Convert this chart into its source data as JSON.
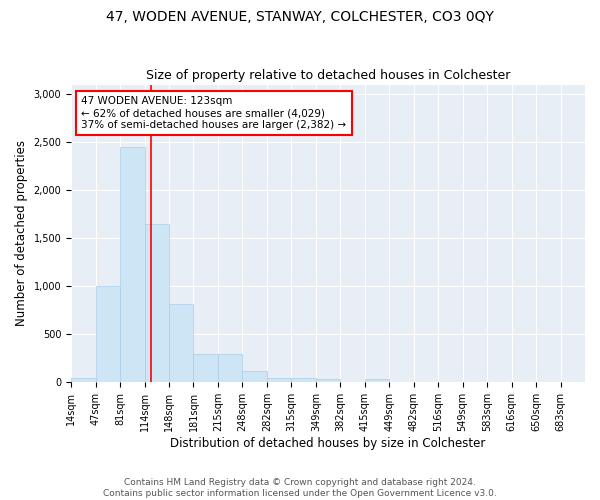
{
  "title": "47, WODEN AVENUE, STANWAY, COLCHESTER, CO3 0QY",
  "subtitle": "Size of property relative to detached houses in Colchester",
  "xlabel": "Distribution of detached houses by size in Colchester",
  "ylabel": "Number of detached properties",
  "bar_color": "#cde5f5",
  "bar_edge_color": "#aacde8",
  "background_color": "#e8eef5",
  "grid_color": "#ffffff",
  "bin_labels": [
    "14sqm",
    "47sqm",
    "81sqm",
    "114sqm",
    "148sqm",
    "181sqm",
    "215sqm",
    "248sqm",
    "282sqm",
    "315sqm",
    "349sqm",
    "382sqm",
    "415sqm",
    "449sqm",
    "482sqm",
    "516sqm",
    "549sqm",
    "583sqm",
    "616sqm",
    "650sqm",
    "683sqm"
  ],
  "bin_edges": [
    0,
    1,
    2,
    3,
    4,
    5,
    6,
    7,
    8,
    9,
    10,
    11,
    12,
    13,
    14,
    15,
    16,
    17,
    18,
    19,
    20,
    21
  ],
  "bar_heights": [
    50,
    1000,
    2450,
    1650,
    820,
    290,
    290,
    115,
    50,
    50,
    30,
    0,
    30,
    0,
    0,
    0,
    0,
    0,
    0,
    0,
    0
  ],
  "red_line_x": 3.27,
  "annotation_title": "47 WODEN AVENUE: 123sqm",
  "annotation_line1": "← 62% of detached houses are smaller (4,029)",
  "annotation_line2": "37% of semi-detached houses are larger (2,382) →",
  "ylim": [
    0,
    3100
  ],
  "yticks": [
    0,
    500,
    1000,
    1500,
    2000,
    2500,
    3000
  ],
  "footer_line1": "Contains HM Land Registry data © Crown copyright and database right 2024.",
  "footer_line2": "Contains public sector information licensed under the Open Government Licence v3.0.",
  "title_fontsize": 10,
  "subtitle_fontsize": 9,
  "xlabel_fontsize": 8.5,
  "ylabel_fontsize": 8.5,
  "annotation_fontsize": 7.5,
  "footer_fontsize": 6.5,
  "tick_fontsize": 7
}
